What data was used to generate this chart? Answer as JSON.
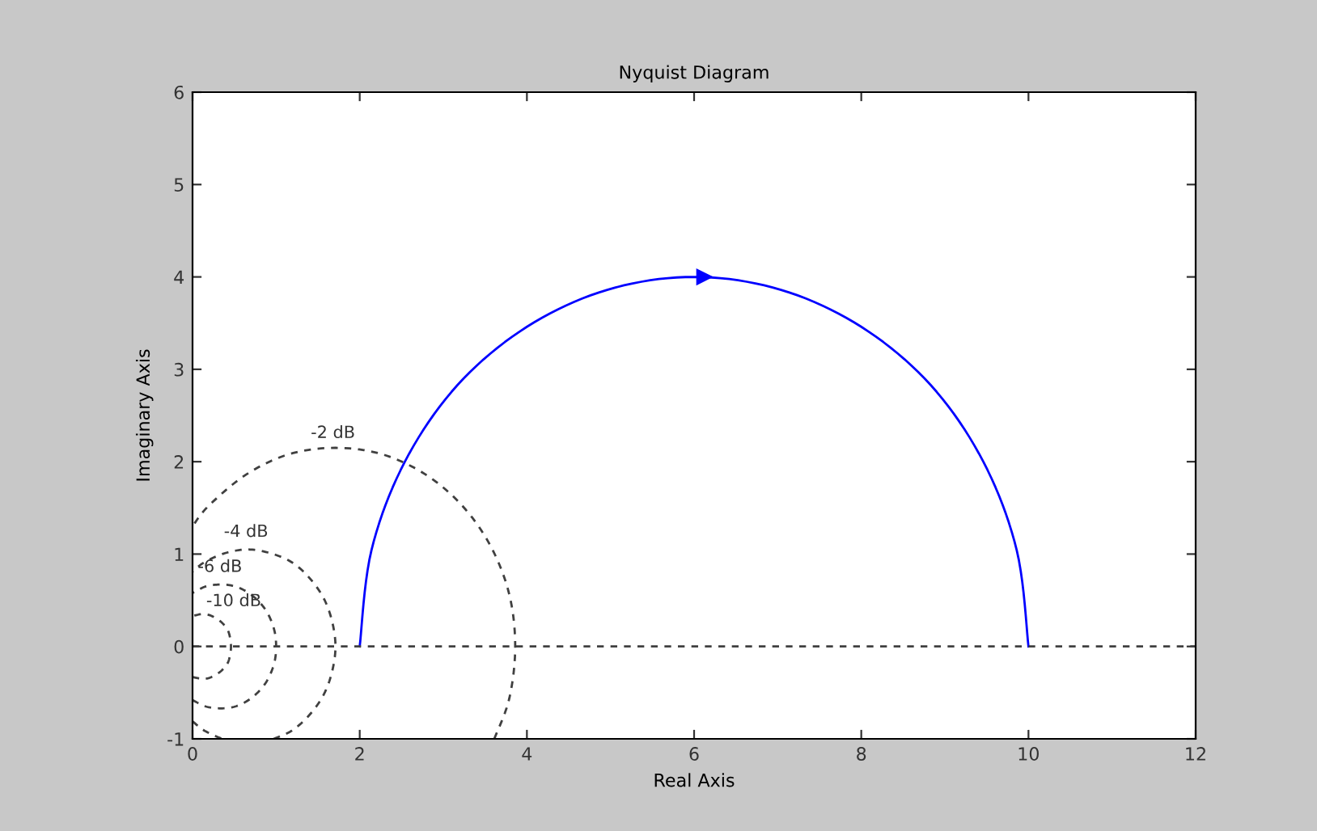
{
  "chart_data": {
    "type": "line",
    "title": "Nyquist Diagram",
    "xlabel": "Real Axis",
    "ylabel": "Imaginary Axis",
    "xlim": [
      0,
      12
    ],
    "xticks": [
      0,
      2,
      4,
      6,
      8,
      10,
      12
    ],
    "ylim": [
      -1,
      6
    ],
    "yticks": [
      -1,
      0,
      1,
      2,
      3,
      4,
      5,
      6
    ],
    "grid": false,
    "legend": false,
    "series": [
      {
        "color": "#0000ff",
        "line_style": "solid",
        "x": [
          2,
          2.14,
          2.54,
          3.17,
          4,
          4.96,
          6,
          7.04,
          8,
          8.83,
          9.46,
          9.86,
          10
        ],
        "values": [
          0,
          1.04,
          2,
          2.83,
          3.46,
          3.86,
          4,
          3.86,
          3.46,
          2.83,
          2,
          1.04,
          0
        ]
      },
      {
        "color": "#404040",
        "line_style": "dashed",
        "x": [
          3.61,
          3.79,
          3.86,
          3.79,
          3.57,
          3.23,
          2.79,
          2.27,
          1.71,
          1.15,
          0.64,
          0.19,
          0
        ],
        "values": [
          -1,
          -0.56,
          0,
          0.56,
          1.08,
          1.52,
          1.86,
          2.08,
          2.15,
          2.08,
          1.86,
          1.52,
          1.3
        ]
      },
      {
        "color": "#404040",
        "line_style": "dashed",
        "x": [
          0.97,
          1.19,
          1.4,
          1.57,
          1.67,
          1.71,
          1.67,
          1.57,
          1.4,
          1.19,
          0.93,
          0.66,
          0.39,
          0.14,
          0
        ],
        "values": [
          -1,
          -0.91,
          -0.74,
          -0.52,
          -0.27,
          0,
          0.27,
          0.52,
          0.74,
          0.91,
          1.01,
          1.05,
          1.01,
          0.91,
          0.81
        ]
      },
      {
        "color": "#404040",
        "line_style": "dashed",
        "x": [
          0,
          0.14,
          0.35
        ],
        "values": [
          -0.81,
          -0.91,
          -1
        ]
      },
      {
        "color": "#404040",
        "line_style": "dashed",
        "x": [
          0,
          0.16,
          0.34,
          0.51,
          0.67,
          0.81,
          0.91,
          0.98,
          1,
          0.98,
          0.91,
          0.81,
          0.67,
          0.51,
          0.34,
          0.16,
          0
        ],
        "values": [
          -0.58,
          -0.65,
          -0.67,
          -0.65,
          -0.58,
          -0.47,
          -0.34,
          -0.17,
          0,
          0.17,
          0.34,
          0.47,
          0.58,
          0.65,
          0.67,
          0.65,
          0.58
        ]
      },
      {
        "color": "#404040",
        "line_style": "dashed",
        "x": [
          0,
          0.11,
          0.2,
          0.29,
          0.36,
          0.42,
          0.45,
          0.46,
          0.45,
          0.42,
          0.36,
          0.29,
          0.2,
          0.11,
          0
        ],
        "values": [
          -0.33,
          -0.35,
          -0.34,
          -0.3,
          -0.25,
          -0.18,
          -0.09,
          0,
          0.09,
          0.18,
          0.25,
          0.3,
          0.34,
          0.35,
          0.33
        ]
      }
    ],
    "ref_lines": [
      {
        "axis": "y",
        "value": 0,
        "color": "#404040",
        "line_style": "dashed"
      }
    ],
    "annotations": [
      {
        "text": "-2 dB",
        "x": 1.68,
        "y": 2.17
      },
      {
        "text": "-4 dB",
        "x": 0.64,
        "y": 1.1
      },
      {
        "text": "-6 dB",
        "x": 0.31,
        "y": 0.72
      },
      {
        "text": "-10 dB",
        "x": 0.11,
        "y": 0.35
      }
    ]
  }
}
